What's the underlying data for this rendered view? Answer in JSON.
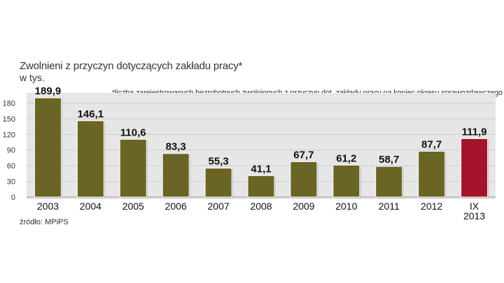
{
  "chart_data": {
    "type": "bar",
    "title": "Zwolnieni z przyczyn dotyczących zakładu pracy*",
    "unit": "w tys.",
    "note": "*liczba zarejestrowanych bezrobotnych zwolnionych z przyczyn dot. zakładu pracy na koniec okresu sprawozdawczego",
    "source": "źródło: MPiPS",
    "categories": [
      "2003",
      "2004",
      "2005",
      "2006",
      "2007",
      "2008",
      "2009",
      "2010",
      "2011",
      "2012",
      "IX 2013"
    ],
    "category_lines": [
      [
        "2003"
      ],
      [
        "2004"
      ],
      [
        "2005"
      ],
      [
        "2006"
      ],
      [
        "2007"
      ],
      [
        "2008"
      ],
      [
        "2009"
      ],
      [
        "2010"
      ],
      [
        "2011"
      ],
      [
        "2012"
      ],
      [
        "IX",
        "2013"
      ]
    ],
    "values": [
      189.9,
      146.1,
      110.6,
      83.3,
      55.3,
      41.1,
      67.7,
      61.2,
      58.7,
      87.7,
      111.9
    ],
    "value_labels": [
      "189,9",
      "146,1",
      "110,6",
      "83,3",
      "55,3",
      "41,1",
      "67,7",
      "61,2",
      "58,7",
      "87,7",
      "111,9"
    ],
    "yticks": [
      0,
      30,
      60,
      90,
      120,
      150,
      180
    ],
    "ylim": [
      0,
      190
    ],
    "grid": true,
    "colors": {
      "bar": "#6a6425",
      "bar_highlight": "#a3132c",
      "band": "#e6e6e6",
      "grid": "#cccccc"
    },
    "highlight_index": 10
  }
}
